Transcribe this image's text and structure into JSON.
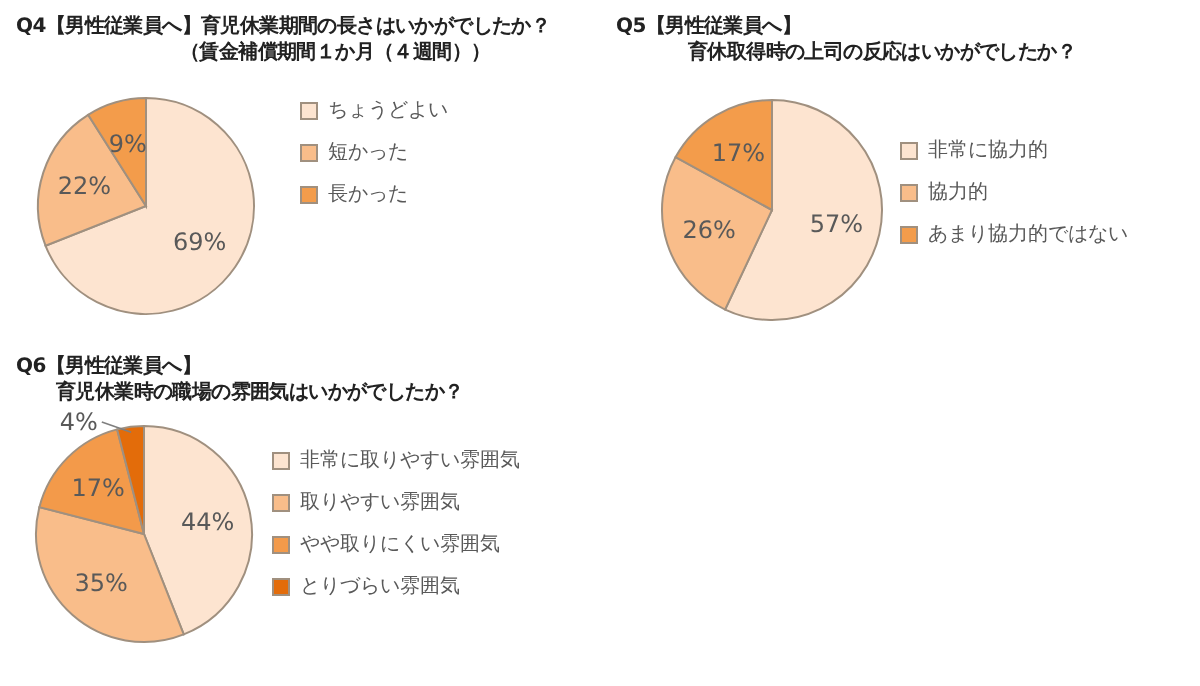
{
  "chart_data": [
    {
      "type": "pie",
      "title": "Q4【男性従業員へ】育児休業期間の長さはいかがでしたか？",
      "subtitle": "（賃金補償期間１か月（４週間））",
      "categories": [
        "ちょうどよい",
        "短かった",
        "長かった"
      ],
      "values": [
        69,
        22,
        9
      ],
      "value_labels": [
        "69%",
        "22%",
        "9%"
      ],
      "colors": [
        "#fde4d0",
        "#f9bd8a",
        "#f39c4b"
      ],
      "legend": "right"
    },
    {
      "type": "pie",
      "title": "Q5【男性従業員へ】",
      "subtitle": "育休取得時の上司の反応はいかがでしたか？",
      "categories": [
        "非常に協力的",
        "協力的",
        "あまり協力的ではない"
      ],
      "values": [
        57,
        26,
        17
      ],
      "value_labels": [
        "57%",
        "26%",
        "17%"
      ],
      "colors": [
        "#fde4d0",
        "#f9bd8a",
        "#f39c4b"
      ],
      "legend": "right"
    },
    {
      "type": "pie",
      "title": "Q6【男性従業員へ】",
      "subtitle": "育児休業時の職場の雰囲気はいかがでしたか？",
      "categories": [
        "非常に取りやすい雰囲気",
        "取りやすい雰囲気",
        "やや取りにくい雰囲気",
        "とりづらい雰囲気"
      ],
      "values": [
        44,
        35,
        17,
        4
      ],
      "value_labels": [
        "44%",
        "35%",
        "17%",
        "4%"
      ],
      "colors": [
        "#fde4d0",
        "#f9bd8a",
        "#f39a4a",
        "#e36c0a"
      ],
      "legend": "right"
    }
  ]
}
